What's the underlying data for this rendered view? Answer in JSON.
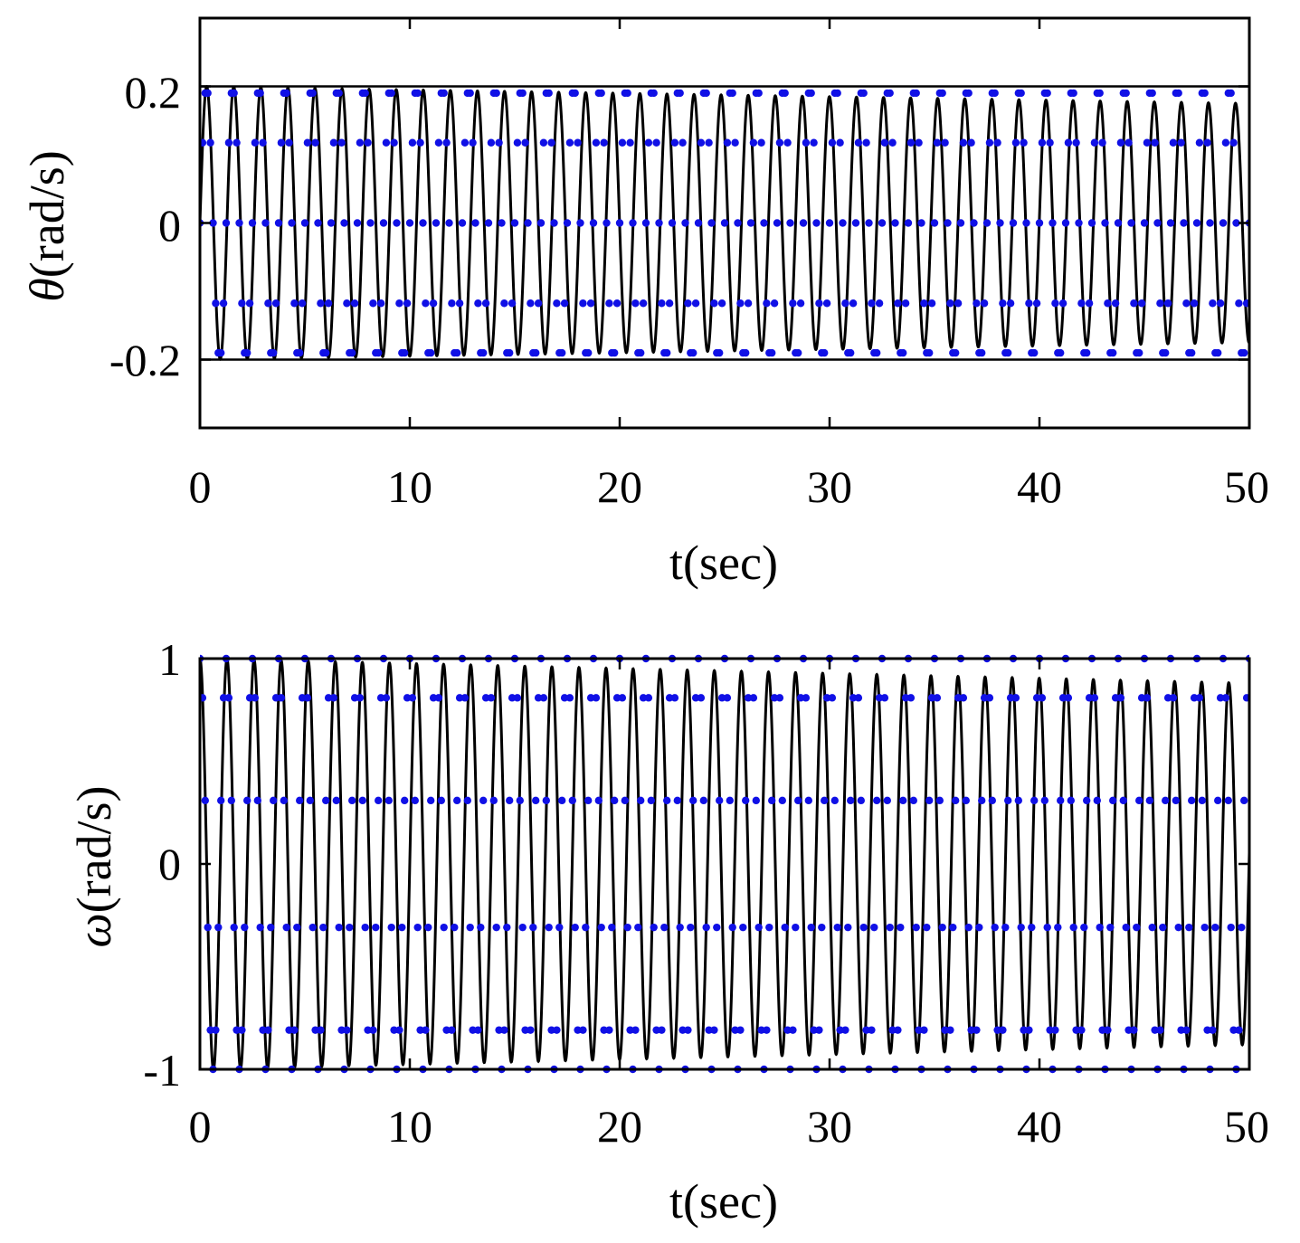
{
  "colors": {
    "exact": "#000000",
    "approx": "#1010e6"
  },
  "chart_data": [
    {
      "type": "line",
      "panel": "top",
      "xlabel": "t(sec)",
      "ylabel_symbol": "θ",
      "ylabel_unit": "(rad/s)",
      "xlim": [
        0,
        50
      ],
      "ylim": [
        -0.3,
        0.3
      ],
      "xticks": [
        "0",
        "10",
        "20",
        "30",
        "40",
        "50"
      ],
      "yticks": [
        "0.2",
        "0",
        "-0.2"
      ],
      "ytick_values": [
        0.2,
        0,
        -0.2
      ],
      "reference_lines": [
        0.2,
        -0.2
      ],
      "series": [
        {
          "style": "solid-black",
          "function": "sin",
          "amplitude_start": 0.2,
          "amplitude_end": 0.175,
          "period": 1.29,
          "t_range": [
            0,
            50
          ]
        },
        {
          "style": "blue-dots",
          "function": "sin",
          "amplitude_start": 0.2,
          "amplitude_end": 0.2,
          "period": 1.25,
          "sample_step": 0.125,
          "t_range": [
            0,
            50
          ]
        }
      ]
    },
    {
      "type": "line",
      "panel": "bottom",
      "xlabel": "t(sec)",
      "ylabel_symbol": "ω",
      "ylabel_unit": "(rad/s)",
      "xlim": [
        0,
        50
      ],
      "ylim": [
        -1,
        1
      ],
      "xticks": [
        "0",
        "10",
        "20",
        "30",
        "40",
        "50"
      ],
      "yticks": [
        "1",
        "0",
        "-1"
      ],
      "ytick_values": [
        1,
        0,
        -1
      ],
      "reference_lines": [
        1,
        -1
      ],
      "series": [
        {
          "style": "solid-black",
          "function": "cos",
          "amplitude_start": 1.0,
          "amplitude_end": 0.88,
          "period": 1.29,
          "t_range": [
            0,
            50
          ]
        },
        {
          "style": "blue-dots",
          "function": "cos",
          "amplitude_start": 1.0,
          "amplitude_end": 1.0,
          "period": 1.25,
          "sample_step": 0.125,
          "t_range": [
            0,
            50
          ]
        }
      ]
    }
  ]
}
